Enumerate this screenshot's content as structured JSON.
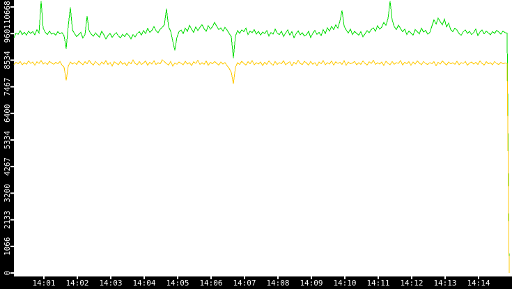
{
  "chart_data": {
    "type": "line",
    "title": "",
    "grid": false,
    "legend": "none",
    "background_color": "#ffffff",
    "axis_band_color": "#000000",
    "axis_text_color": "#ffffff",
    "x_axis": {
      "label": "",
      "tick_labels": [
        "14:01",
        "14:02",
        "14:03",
        "14:04",
        "14:05",
        "14:06",
        "14:07",
        "14:08",
        "14:09",
        "14:10",
        "14:11",
        "14:12",
        "14:13",
        "14:14"
      ]
    },
    "y_axis": {
      "label": "",
      "min": 0,
      "max": 10668,
      "tick_values": [
        0,
        1066,
        2133,
        3200,
        4267,
        5334,
        6400,
        7467,
        8534,
        9601,
        10668
      ]
    },
    "series": [
      {
        "name": "green",
        "color": "#00dd00",
        "values": [
          9430,
          9620,
          9570,
          9720,
          9560,
          9650,
          9540,
          9700,
          9610,
          9680,
          9550,
          9760,
          9620,
          10900,
          9820,
          9650,
          9560,
          9700,
          9580,
          9620,
          9540,
          9680,
          9590,
          9640,
          9510,
          9000,
          9900,
          10650,
          9750,
          9600,
          9480,
          9570,
          9650,
          9420,
          9560,
          10300,
          9700,
          9580,
          9490,
          9630,
          9540,
          9460,
          9700,
          9560,
          9380,
          9520,
          9610,
          9450,
          9560,
          9640,
          9500,
          9430,
          9570,
          9480,
          9610,
          9520,
          9390,
          9560,
          9470,
          9600,
          9680,
          9540,
          9720,
          9600,
          9810,
          9650,
          9730,
          9880,
          9720,
          9640,
          9780,
          9850,
          9960,
          10600,
          9870,
          9700,
          9300,
          8930,
          9450,
          9680,
          9740,
          9600,
          9820,
          9690,
          9930,
          9780,
          9650,
          9870,
          9720,
          9850,
          9960,
          9800,
          9690,
          9920,
          9780,
          9870,
          10050,
          9900,
          9760,
          9830,
          9700,
          9850,
          9740,
          9600,
          9480,
          8620,
          9500,
          9720,
          9610,
          9750,
          9680,
          9820,
          9560,
          9700,
          9640,
          9760,
          9580,
          9690,
          9540,
          9660,
          9600,
          9720,
          9500,
          9640,
          9580,
          9780,
          9620,
          9560,
          9700,
          9480,
          9620,
          9750,
          9540,
          9680,
          9430,
          9590,
          9710,
          9550,
          9630,
          9500,
          9560,
          9690,
          9440,
          9610,
          9730,
          9570,
          9650,
          9520,
          9760,
          9600,
          9830,
          9700,
          9890,
          9760,
          9950,
          9820,
          10100,
          10530,
          9900,
          9740,
          9620,
          9780,
          9560,
          9690,
          9610,
          9540,
          9680,
          9470,
          9590,
          9720,
          9640,
          9760,
          9830,
          9690,
          9920,
          9780,
          9860,
          10050,
          9930,
          10200,
          10900,
          10150,
          9880,
          9760,
          9940,
          9800,
          9670,
          9780,
          9560,
          9700,
          9620,
          9540,
          9760,
          9680,
          9590,
          9820,
          9660,
          9730,
          9580,
          9640,
          9900,
          10150,
          9980,
          10220,
          10080,
          9950,
          10180,
          9870,
          10020,
          9760,
          9680,
          9820,
          9740,
          9600,
          9530,
          9670,
          9750,
          9610,
          9690,
          9560,
          9640,
          9780,
          9520,
          9660,
          9740,
          9590,
          9700,
          9630,
          9550,
          9680,
          9610,
          9730,
          9660,
          9580,
          9700,
          9640,
          9620,
          0
        ]
      },
      {
        "name": "yellow",
        "color": "#ffc800",
        "values": [
          8360,
          8450,
          8390,
          8480,
          8350,
          8430,
          8370,
          8500,
          8410,
          8460,
          8330,
          8470,
          8400,
          8520,
          8380,
          8440,
          8360,
          8490,
          8420,
          8370,
          8450,
          8390,
          8480,
          8340,
          8250,
          7720,
          8300,
          8460,
          8380,
          8440,
          8360,
          8500,
          8420,
          8350,
          8470,
          8390,
          8530,
          8410,
          8340,
          8480,
          8400,
          8330,
          8460,
          8380,
          8520,
          8360,
          8440,
          8300,
          8470,
          8410,
          8350,
          8490,
          8370,
          8430,
          8310,
          8460,
          8390,
          8540,
          8400,
          8350,
          8480,
          8360,
          8420,
          8500,
          8330,
          8450,
          8380,
          8510,
          8360,
          8430,
          8390,
          8550,
          8470,
          8400,
          8340,
          8480,
          8300,
          8420,
          8370,
          8460,
          8410,
          8350,
          8490,
          8380,
          8440,
          8320,
          8470,
          8400,
          8530,
          8360,
          8430,
          8370,
          8500,
          8330,
          8450,
          8390,
          8480,
          8410,
          8340,
          8460,
          8380,
          8440,
          8310,
          8200,
          8050,
          7580,
          8250,
          8430,
          8360,
          8490,
          8400,
          8340,
          8470,
          8390,
          8520,
          8350,
          8430,
          8380,
          8460,
          8320,
          8450,
          8370,
          8500,
          8410,
          8330,
          8480,
          8360,
          8440,
          8390,
          8510,
          8350,
          8420,
          8470,
          8310,
          8450,
          8380,
          8530,
          8400,
          8360,
          8490,
          8420,
          8340,
          8480,
          8370,
          8440,
          8310,
          8460,
          8390,
          8520,
          8350,
          8430,
          8380,
          8500,
          8340,
          8470,
          8400,
          8450,
          8370,
          8510,
          8330,
          8460,
          8390,
          8420,
          8480,
          8350,
          8440,
          8370,
          8500,
          8410,
          8340,
          8470,
          8400,
          8530,
          8360,
          8430,
          8380,
          8460,
          8320,
          8490,
          8410,
          8350,
          8480,
          8370,
          8440,
          8400,
          8520,
          8340,
          8450,
          8390,
          8470,
          8330,
          8460,
          8380,
          8510,
          8420,
          8350,
          8480,
          8400,
          8360,
          8440,
          8390,
          8470,
          8310,
          8450,
          8380,
          8500,
          8420,
          8340,
          8460,
          8390,
          8430,
          8370,
          8490,
          8350,
          8440,
          8400,
          8480,
          8330,
          8420,
          8460,
          8380,
          8450,
          8360,
          8500,
          8410,
          8340,
          8470,
          8390,
          8430,
          8350,
          8480,
          8400,
          8360,
          8450,
          8390,
          8420,
          8410,
          0
        ]
      }
    ]
  }
}
